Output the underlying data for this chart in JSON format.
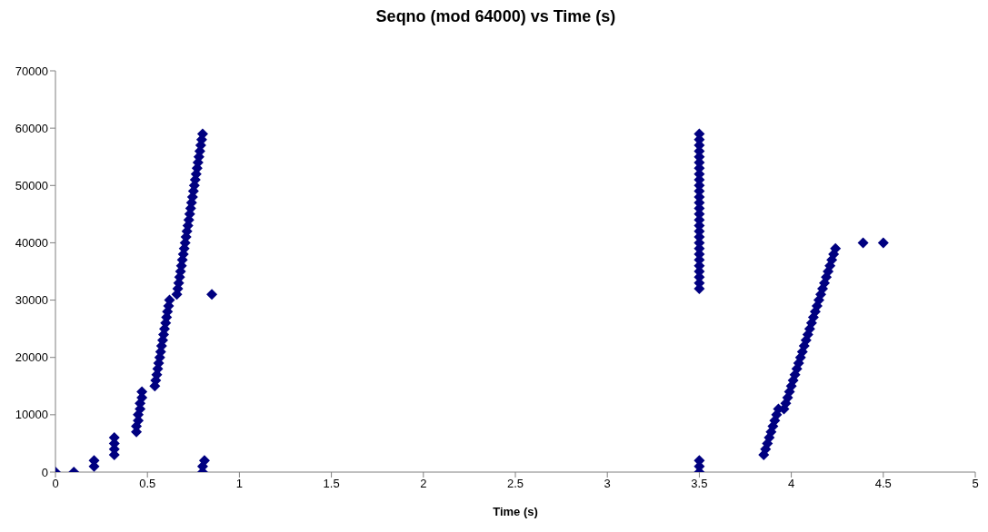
{
  "chart_data": {
    "type": "scatter",
    "title": "Seqno (mod 64000) vs Time (s)",
    "xlabel": "Time   (s)",
    "xlim": [
      0,
      5
    ],
    "xticks": [
      0,
      0.5,
      1,
      1.5,
      2,
      2.5,
      3,
      3.5,
      4,
      4.5,
      5
    ],
    "ylim": [
      0,
      70000
    ],
    "yticks": [
      0,
      10000,
      20000,
      30000,
      40000,
      50000,
      60000,
      70000
    ],
    "grid": false,
    "legend": false,
    "marker": "diamond",
    "series": [
      {
        "color": "#000080",
        "x": [
          0,
          0.1,
          0.21,
          0.21,
          0.32,
          0.32,
          0.32,
          0.32,
          0.44,
          0.44,
          0.45,
          0.45,
          0.46,
          0.46,
          0.47,
          0.47,
          0.54,
          0.545,
          0.551,
          0.556,
          0.561,
          0.567,
          0.572,
          0.577,
          0.583,
          0.588,
          0.593,
          0.599,
          0.604,
          0.609,
          0.615,
          0.62,
          0.66,
          0.665,
          0.67,
          0.675,
          0.68,
          0.685,
          0.69,
          0.695,
          0.7,
          0.705,
          0.71,
          0.715,
          0.72,
          0.725,
          0.73,
          0.735,
          0.74,
          0.745,
          0.75,
          0.755,
          0.76,
          0.765,
          0.77,
          0.775,
          0.78,
          0.785,
          0.79,
          0.795,
          0.8,
          0.8,
          0.8,
          0.81,
          0.85,
          3.5,
          3.5,
          3.5,
          3.5,
          3.5,
          3.5,
          3.5,
          3.5,
          3.5,
          3.5,
          3.5,
          3.5,
          3.5,
          3.5,
          3.5,
          3.5,
          3.5,
          3.5,
          3.5,
          3.5,
          3.5,
          3.5,
          3.5,
          3.5,
          3.5,
          3.5,
          3.5,
          3.5,
          3.5,
          3.5,
          3.5,
          3.85,
          3.86,
          3.87,
          3.88,
          3.89,
          3.9,
          3.91,
          3.92,
          3.93,
          3.96,
          3.97,
          3.98,
          3.99,
          4,
          4.01,
          4.02,
          4.03,
          4.04,
          4.05,
          4.06,
          4.07,
          4.08,
          4.09,
          4.1,
          4.11,
          4.12,
          4.13,
          4.14,
          4.15,
          4.16,
          4.17,
          4.18,
          4.19,
          4.2,
          4.21,
          4.22,
          4.23,
          4.24,
          4.39,
          4.5
        ],
        "values": [
          0,
          0,
          1000,
          2000,
          3000,
          4000,
          5000,
          6000,
          7000,
          8000,
          9000,
          10000,
          11000,
          12000,
          13000,
          14000,
          15000,
          16000,
          17000,
          18000,
          19000,
          20000,
          21000,
          22000,
          23000,
          24000,
          25000,
          26000,
          27000,
          28000,
          29000,
          30000,
          31000,
          32000,
          33000,
          34000,
          35000,
          36000,
          37000,
          38000,
          39000,
          40000,
          41000,
          42000,
          43000,
          44000,
          45000,
          46000,
          47000,
          48000,
          49000,
          50000,
          51000,
          52000,
          53000,
          54000,
          55000,
          56000,
          57000,
          58000,
          59000,
          0,
          1000,
          2000,
          31000,
          0,
          1000,
          2000,
          32000,
          33000,
          34000,
          35000,
          36000,
          37000,
          38000,
          39000,
          40000,
          41000,
          42000,
          43000,
          44000,
          45000,
          46000,
          47000,
          48000,
          49000,
          50000,
          51000,
          52000,
          53000,
          54000,
          55000,
          56000,
          57000,
          58000,
          59000,
          3000,
          4000,
          5000,
          6000,
          7000,
          8000,
          9000,
          10000,
          11000,
          11000,
          12000,
          13000,
          14000,
          15000,
          16000,
          17000,
          18000,
          19000,
          20000,
          21000,
          22000,
          23000,
          24000,
          25000,
          26000,
          27000,
          28000,
          29000,
          30000,
          31000,
          32000,
          33000,
          34000,
          35000,
          36000,
          37000,
          38000,
          39000,
          40000,
          40000
        ]
      }
    ]
  }
}
